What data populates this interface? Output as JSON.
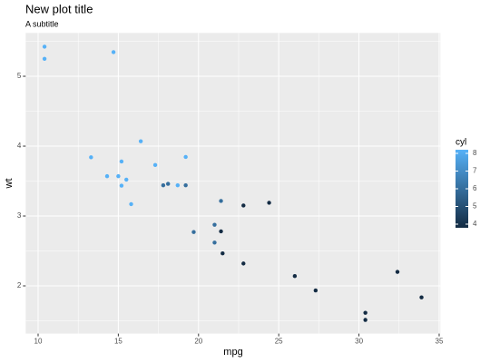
{
  "chart_data": {
    "type": "scatter",
    "title": "New plot title",
    "subtitle": "A subtitle",
    "x_label": "mpg",
    "y_label": "wt",
    "x": [
      21.0,
      21.0,
      22.8,
      21.4,
      18.7,
      18.1,
      14.3,
      24.4,
      22.8,
      19.2,
      17.8,
      16.4,
      17.3,
      15.2,
      10.4,
      10.4,
      14.7,
      32.4,
      30.4,
      33.9,
      21.5,
      15.5,
      15.2,
      13.3,
      19.2,
      27.3,
      26.0,
      30.4,
      15.8,
      19.7,
      15.0,
      21.4
    ],
    "values": [
      2.62,
      2.875,
      2.32,
      3.215,
      3.44,
      3.46,
      3.57,
      3.19,
      3.15,
      3.44,
      3.44,
      4.07,
      3.73,
      3.78,
      5.25,
      5.424,
      5.345,
      2.2,
      1.615,
      1.835,
      2.465,
      3.52,
      3.435,
      3.84,
      3.845,
      1.935,
      2.14,
      1.513,
      3.17,
      2.77,
      3.57,
      2.78
    ],
    "color_values": [
      6,
      6,
      4,
      6,
      8,
      6,
      8,
      4,
      4,
      6,
      6,
      8,
      8,
      8,
      8,
      8,
      8,
      4,
      4,
      4,
      4,
      8,
      8,
      8,
      8,
      4,
      4,
      4,
      8,
      6,
      8,
      4
    ],
    "color_low": "#132B43",
    "color_high": "#56B1F7",
    "legend_title": "cyl",
    "color_lim": [
      4,
      8
    ],
    "color_ticks": [
      4,
      5,
      6,
      7,
      8
    ],
    "xlim": [
      9.225,
      35.075
    ],
    "xticks": [
      10,
      15,
      20,
      25,
      30,
      35
    ],
    "xminor": [
      12.5,
      17.5,
      22.5,
      27.5,
      32.5
    ],
    "ylim": [
      1.317,
      5.62
    ],
    "yticks": [
      2,
      3,
      4,
      5
    ],
    "yminor": [
      1.5,
      2.5,
      3.5,
      4.5,
      5.5
    ],
    "grid": true,
    "legend_position": "right"
  }
}
